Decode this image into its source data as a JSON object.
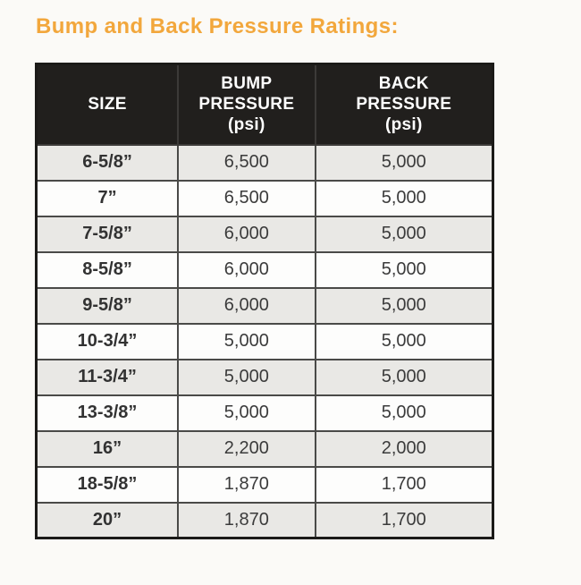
{
  "page": {
    "title": "Bump and Back Pressure Ratings:",
    "title_color": "#F2A73C",
    "background_color": "#fbfaf7"
  },
  "table": {
    "header_bg": "#211f1d",
    "header_text_color": "#ffffff",
    "shaded_row_color": "#e9e8e5",
    "plain_row_color": "#fdfdfc",
    "columns": [
      {
        "label": "SIZE"
      },
      {
        "label": "BUMP\nPRESSURE\n(psi)"
      },
      {
        "label": "BACK\nPRESSURE\n(psi)"
      }
    ],
    "rows": [
      {
        "size": "6-5/8”",
        "bump": "6,500",
        "back": "5,000"
      },
      {
        "size": "7”",
        "bump": "6,500",
        "back": "5,000"
      },
      {
        "size": "7-5/8”",
        "bump": "6,000",
        "back": "5,000"
      },
      {
        "size": "8-5/8”",
        "bump": "6,000",
        "back": "5,000"
      },
      {
        "size": "9-5/8”",
        "bump": "6,000",
        "back": "5,000"
      },
      {
        "size": "10-3/4”",
        "bump": "5,000",
        "back": "5,000"
      },
      {
        "size": "11-3/4”",
        "bump": "5,000",
        "back": "5,000"
      },
      {
        "size": "13-3/8”",
        "bump": "5,000",
        "back": "5,000"
      },
      {
        "size": "16”",
        "bump": "2,200",
        "back": "2,000"
      },
      {
        "size": "18-5/8”",
        "bump": "1,870",
        "back": "1,700"
      },
      {
        "size": "20”",
        "bump": "1,870",
        "back": "1,700"
      }
    ]
  }
}
